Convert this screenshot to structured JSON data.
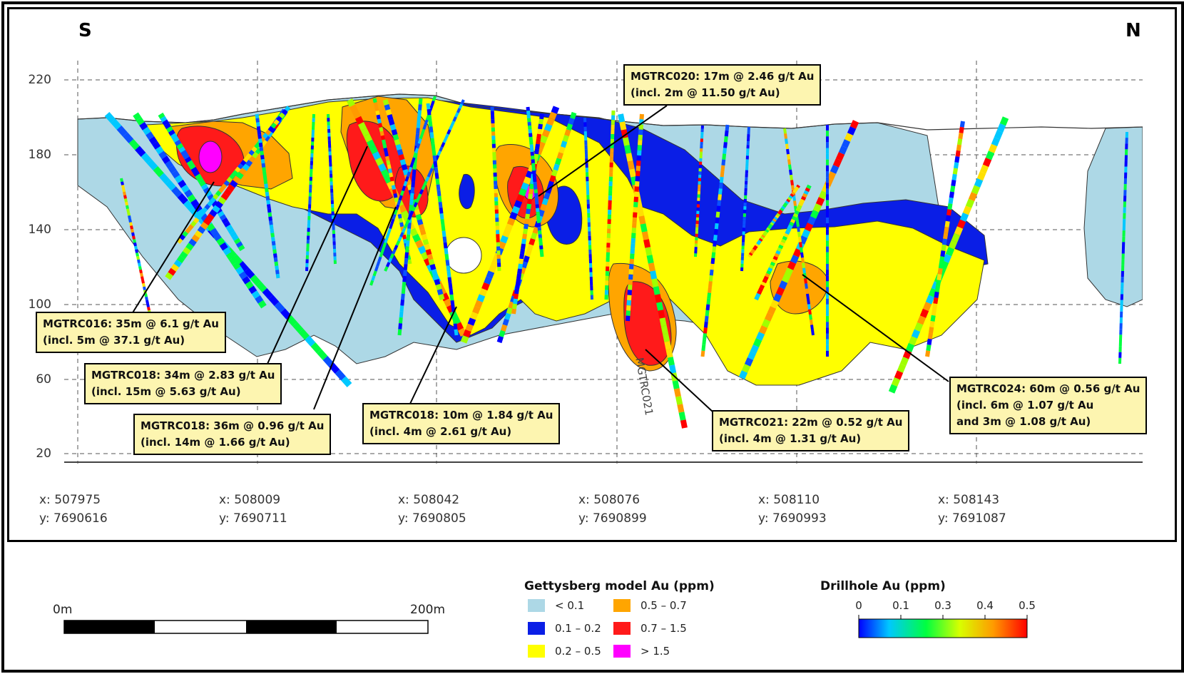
{
  "section": {
    "south_label": "S",
    "north_label": "N",
    "y_ticks": [
      "220",
      "180",
      "140",
      "100",
      "60",
      "20"
    ],
    "x_ticks": [
      {
        "x": "x: 507975",
        "y": "y: 7690616"
      },
      {
        "x": "x: 508009",
        "y": "y: 7690711"
      },
      {
        "x": "x: 508042",
        "y": "y: 7690805"
      },
      {
        "x": "x: 508076",
        "y": "y: 7690899"
      },
      {
        "x": "x: 508110",
        "y": "y: 7690993"
      },
      {
        "x": "x: 508143",
        "y": "y: 7691087"
      }
    ],
    "drillhole_label": "MGTRC021"
  },
  "callouts": [
    {
      "id": "mgtrc020",
      "line1": "MGTRC020: 17m @ 2.46 g/t Au",
      "line2": "(incl. 2m @ 11.50 g/t Au)"
    },
    {
      "id": "mgtrc016",
      "line1": "MGTRC016: 35m @ 6.1 g/t Au",
      "line2": "(incl. 5m @ 37.1 g/t Au)"
    },
    {
      "id": "mgtrc018a",
      "line1": "MGTRC018: 34m @ 2.83 g/t Au",
      "line2": "(incl. 15m @ 5.63 g/t Au)"
    },
    {
      "id": "mgtrc018b",
      "line1": "MGTRC018: 36m @ 0.96 g/t Au",
      "line2": "(incl. 14m @ 1.66 g/t Au)"
    },
    {
      "id": "mgtrc018c",
      "line1": "MGTRC018: 10m @ 1.84 g/t Au",
      "line2": "(incl. 4m @ 2.61 g/t Au)"
    },
    {
      "id": "mgtrc021",
      "line1": "MGTRC021: 22m @ 0.52 g/t Au",
      "line2": "(incl. 4m @ 1.31 g/t Au)"
    },
    {
      "id": "mgtrc024",
      "line1": "MGTRC024: 60m @ 0.56 g/t Au",
      "line2": "(incl. 6m @ 1.07 g/t Au",
      "line3": "and 3m @ 1.08 g/t Au)"
    }
  ],
  "scale_bar": {
    "start": "0m",
    "end": "200m"
  },
  "model_legend": {
    "title": "Gettysberg model Au (ppm)",
    "items": [
      {
        "label": "< 0.1",
        "color": "#add8e6"
      },
      {
        "label": "0.1 – 0.2",
        "color": "#0a1ee6"
      },
      {
        "label": "0.2 – 0.5",
        "color": "#ffff00"
      },
      {
        "label": "0.5 – 0.7",
        "color": "#ffa500"
      },
      {
        "label": "0.7 – 1.5",
        "color": "#ff1a1a"
      },
      {
        "label": "> 1.5",
        "color": "#ff00ff"
      }
    ]
  },
  "drillhole_legend": {
    "title": "Drillhole Au (ppm)",
    "ticks": [
      "0",
      "0.1",
      "0.3",
      "0.4",
      "0.5"
    ]
  }
}
